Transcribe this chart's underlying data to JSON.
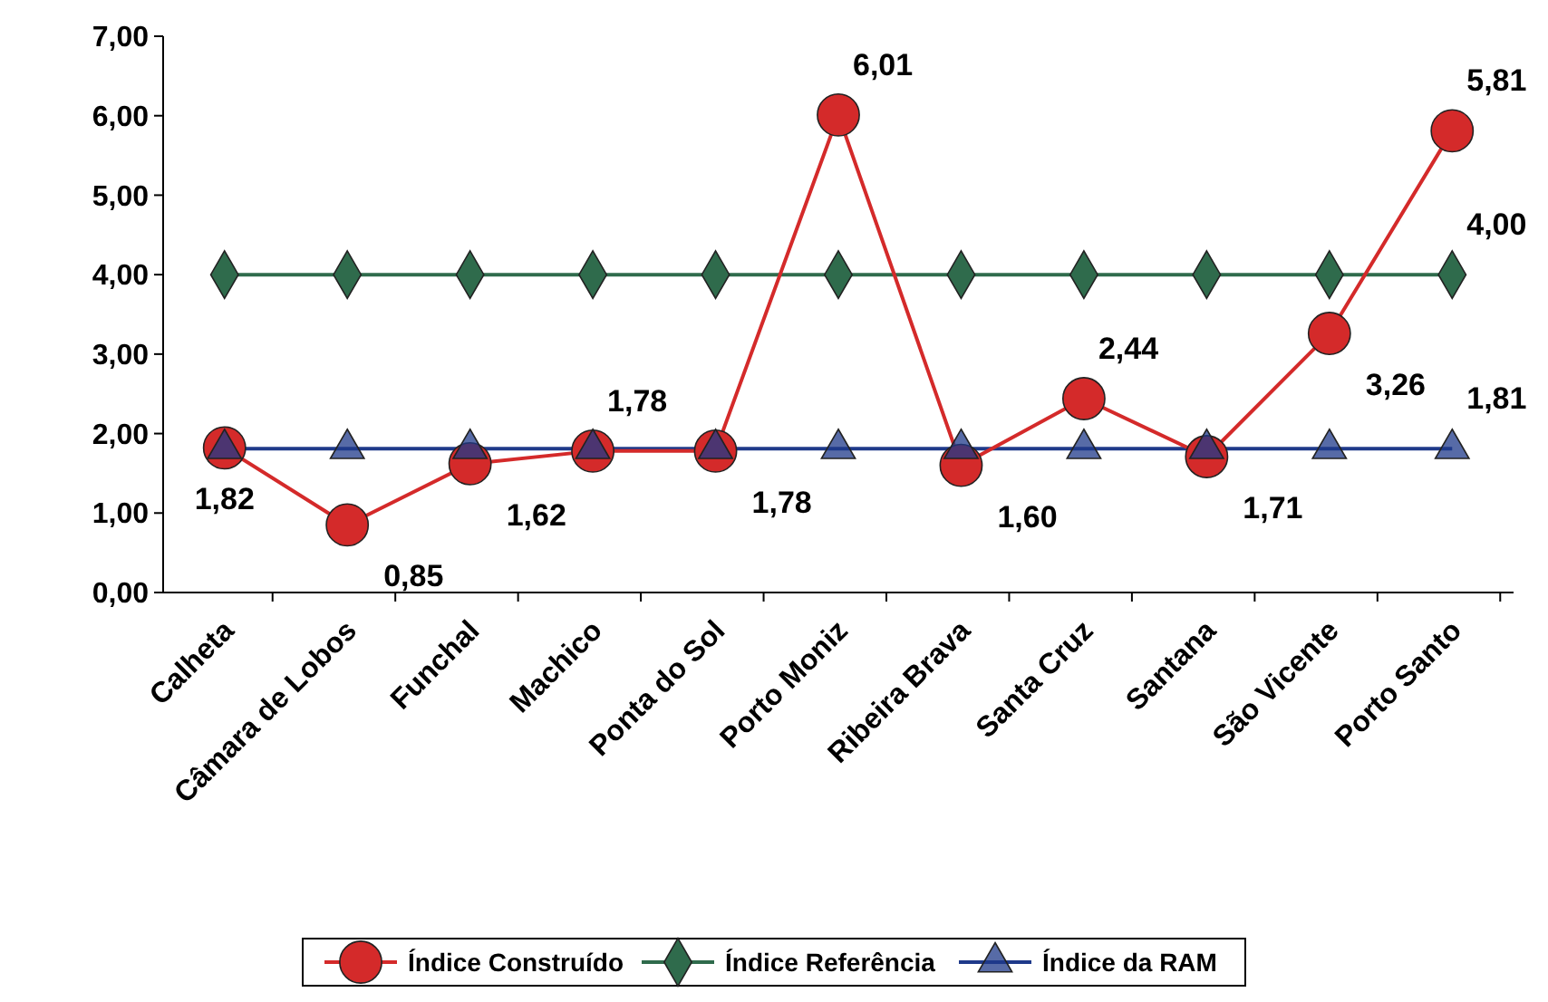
{
  "chart_data": {
    "type": "line",
    "categories": [
      "Calheta",
      "Câmara de Lobos",
      "Funchal",
      "Machico",
      "Ponta do Sol",
      "Porto Moniz",
      "Ribeira Brava",
      "Santa Cruz",
      "Santana",
      "São Vicente",
      "Porto Santo"
    ],
    "ylim": [
      0,
      7
    ],
    "yticks": [
      {
        "value": 0,
        "label": "0,00"
      },
      {
        "value": 1,
        "label": "1,00"
      },
      {
        "value": 2,
        "label": "2,00"
      },
      {
        "value": 3,
        "label": "3,00"
      },
      {
        "value": 4,
        "label": "4,00"
      },
      {
        "value": 5,
        "label": "5,00"
      },
      {
        "value": 6,
        "label": "6,00"
      },
      {
        "value": 7,
        "label": "7,00"
      }
    ],
    "grid": false,
    "legend": "bottom",
    "line_style": "solid",
    "series": [
      {
        "name": "Índice Construído",
        "color": "#d42a2a",
        "marker": "circle",
        "values": [
          1.82,
          0.85,
          1.62,
          1.78,
          1.78,
          6.01,
          1.6,
          2.44,
          1.71,
          3.26,
          5.81
        ],
        "value_labels": [
          "1,82",
          "0,85",
          "1,62",
          "1,78",
          "1,78",
          "6,01",
          "1,60",
          "2,44",
          "1,71",
          "3,26",
          "5,81"
        ]
      },
      {
        "name": "Índice Referência",
        "color": "#2f6b4c",
        "marker": "diamond",
        "values": [
          4,
          4,
          4,
          4,
          4,
          4,
          4,
          4,
          4,
          4,
          4
        ],
        "value_labels": [
          null,
          null,
          null,
          null,
          null,
          null,
          null,
          null,
          null,
          null,
          "4,00"
        ]
      },
      {
        "name": "Índice da RAM",
        "color": "#1f3a8a",
        "marker": "triangle",
        "values": [
          1.81,
          1.81,
          1.81,
          1.81,
          1.81,
          1.81,
          1.81,
          1.81,
          1.81,
          1.81,
          1.81
        ],
        "value_labels": [
          null,
          null,
          null,
          null,
          null,
          null,
          null,
          null,
          null,
          null,
          "1,81"
        ]
      }
    ]
  }
}
